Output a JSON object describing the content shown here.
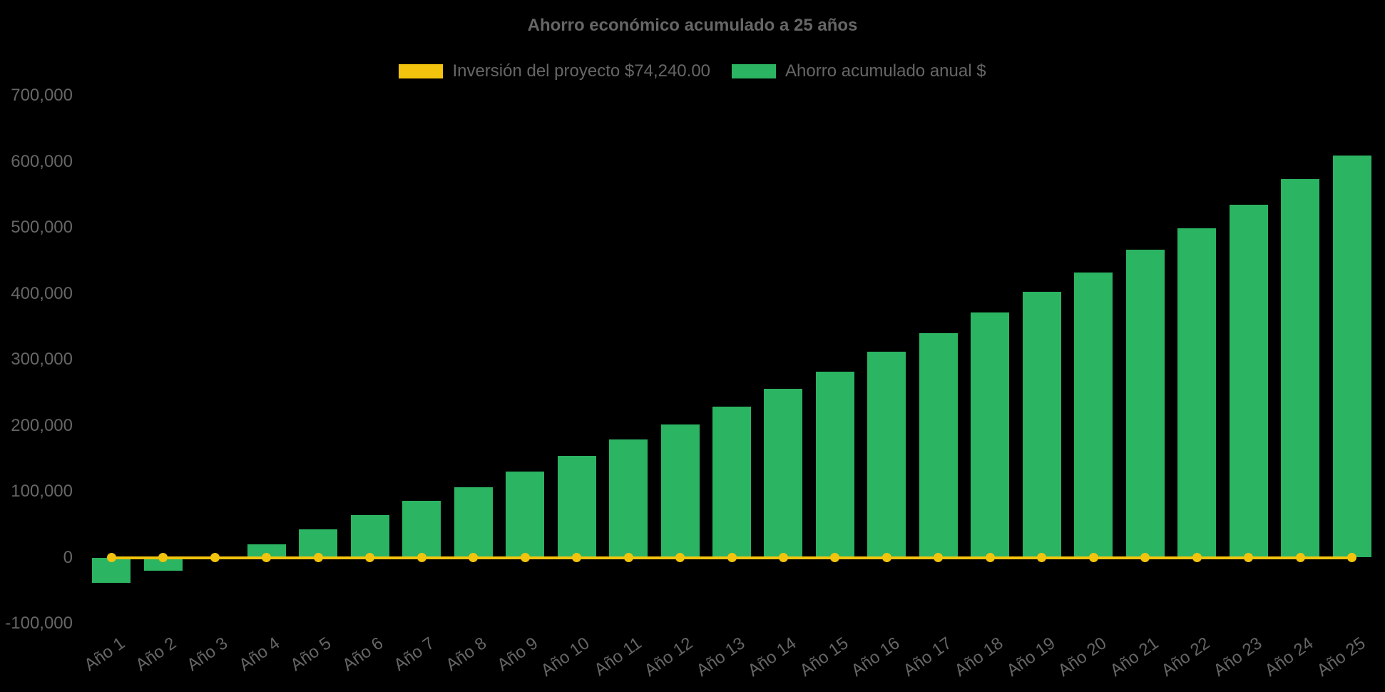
{
  "page": {
    "background": "#000000",
    "text_color": "#666666"
  },
  "chart_data": {
    "type": "bar",
    "title": "Ahorro económico acumulado a 25 años",
    "categories": [
      "Año 1",
      "Año 2",
      "Año 3",
      "Año 4",
      "Año 5",
      "Año 6",
      "Año 7",
      "Año 8",
      "Año 9",
      "Año 10",
      "Año 11",
      "Año 12",
      "Año 13",
      "Año 14",
      "Año 15",
      "Año 16",
      "Año 17",
      "Año 18",
      "Año 19",
      "Año 20",
      "Año 21",
      "Año 22",
      "Año 23",
      "Año 24",
      "Año 25"
    ],
    "series": [
      {
        "name": "Inversión del proyecto $74,240.00",
        "type": "line",
        "color": "#f2c40d",
        "marker": "circle",
        "values": [
          0,
          0,
          0,
          0,
          0,
          0,
          0,
          0,
          0,
          0,
          0,
          0,
          0,
          0,
          0,
          0,
          0,
          0,
          0,
          0,
          0,
          0,
          0,
          0,
          0
        ]
      },
      {
        "name": "Ahorro acumulado anual $",
        "type": "bar",
        "color": "#2bb462",
        "values": [
          -38000,
          -20000,
          2000,
          20000,
          43000,
          64000,
          86000,
          107000,
          130000,
          154000,
          179000,
          202000,
          229000,
          256000,
          282000,
          312000,
          340000,
          371000,
          403000,
          432000,
          466000,
          499000,
          535000,
          573000,
          609000
        ]
      }
    ],
    "ylim": [
      -100000,
      700000
    ],
    "yticks": [
      -100000,
      0,
      100000,
      200000,
      300000,
      400000,
      500000,
      600000,
      700000
    ],
    "xlabel": "",
    "ylabel": "",
    "grid": false,
    "legend_position": "top"
  }
}
